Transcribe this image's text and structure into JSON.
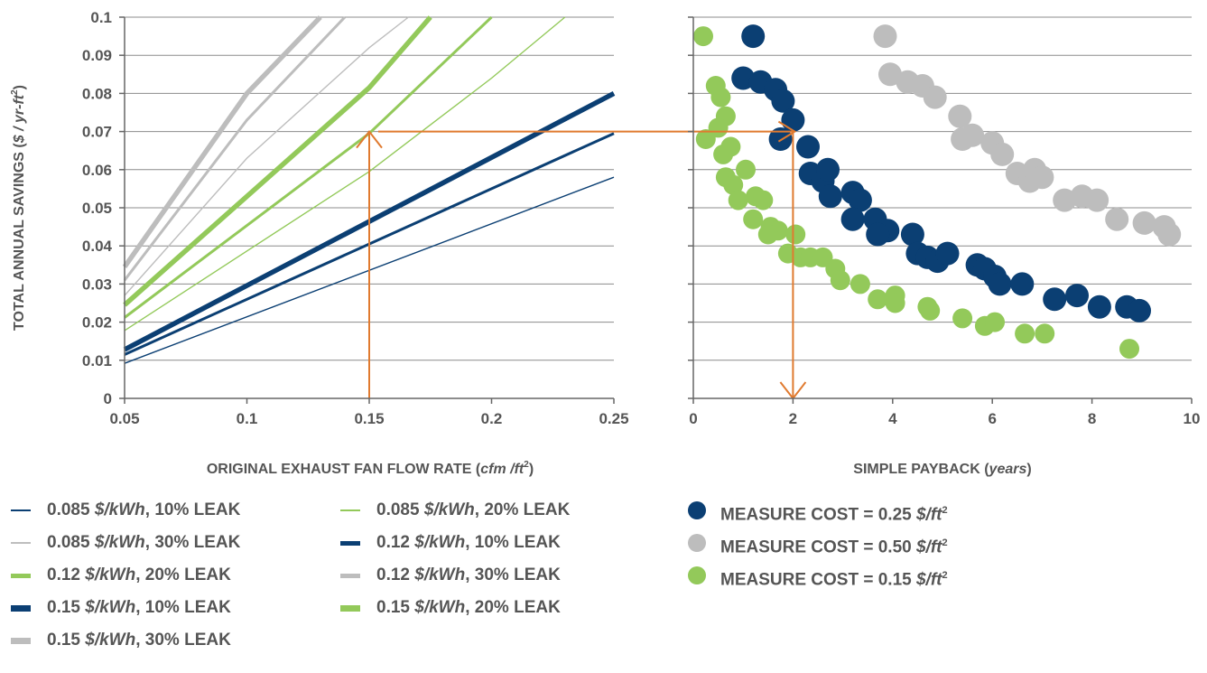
{
  "colors": {
    "navy": "#0b3f73",
    "gray": "#bdbdbd",
    "green": "#93c95a",
    "arrow": "#e07a2f",
    "grid": "#8c8c8c",
    "axis": "#666666",
    "text": "#555555"
  },
  "chart_data": [
    {
      "type": "line",
      "xlabel": "ORIGINAL EXHAUST FAN FLOW RATE (cfm /ft²)",
      "xlabel_parts": {
        "pre": "ORIGINAL EXHAUST FAN FLOW RATE (",
        "unit": "cfm /ft",
        "sup": "2",
        "post": ")"
      },
      "ylabel": "TOTAL ANNUAL SAVINGS ($ / yr-ft²)",
      "ylabel_parts": {
        "pre": "TOTAL ANNUAL SAVINGS (",
        "unit": "$ / yr-ft",
        "sup": "2",
        "post": ")"
      },
      "xlim": [
        0.05,
        0.25
      ],
      "ylim": [
        0,
        0.1
      ],
      "x_ticks": [
        "0.05",
        "0.1",
        "0.15",
        "0.2",
        "0.25"
      ],
      "y_ticks": [
        "0",
        "0.01",
        "0.02",
        "0.03",
        "0.04",
        "0.05",
        "0.06",
        "0.07",
        "0.08",
        "0.09",
        "0.1"
      ],
      "grid": true,
      "series": [
        {
          "name": "0.085 $/kWh, 10% LEAK",
          "price": "0.085",
          "leak": "10% LEAK",
          "color": "navy",
          "weight": "thin",
          "x": [
            0.05,
            0.25
          ],
          "y": [
            0.0092,
            0.058
          ]
        },
        {
          "name": "0.085 $/kWh, 20% LEAK",
          "price": "0.085",
          "leak": "20% LEAK",
          "color": "green",
          "weight": "thin",
          "x": [
            0.05,
            0.15,
            0.2,
            0.23
          ],
          "y": [
            0.0178,
            0.0595,
            0.084,
            0.1
          ]
        },
        {
          "name": "0.085 $/kWh, 30% LEAK",
          "price": "0.085",
          "leak": "30% LEAK",
          "color": "gray",
          "weight": "thin",
          "x": [
            0.05,
            0.1,
            0.15,
            0.166
          ],
          "y": [
            0.027,
            0.063,
            0.092,
            0.1
          ]
        },
        {
          "name": "0.12 $/kWh, 10% LEAK",
          "price": "0.12",
          "leak": "10% LEAK",
          "color": "navy",
          "weight": "medium",
          "x": [
            0.05,
            0.25
          ],
          "y": [
            0.0115,
            0.0695
          ]
        },
        {
          "name": "0.12 $/kWh, 20% LEAK",
          "price": "0.12",
          "leak": "20% LEAK",
          "color": "green",
          "weight": "medium",
          "x": [
            0.05,
            0.15,
            0.2
          ],
          "y": [
            0.0212,
            0.0695,
            0.1
          ]
        },
        {
          "name": "0.12 $/kWh, 30% LEAK",
          "price": "0.12",
          "leak": "30% LEAK",
          "color": "gray",
          "weight": "medium",
          "x": [
            0.05,
            0.1,
            0.14
          ],
          "y": [
            0.031,
            0.073,
            0.1
          ]
        },
        {
          "name": "0.15 $/kWh, 10% LEAK",
          "price": "0.15",
          "leak": "10% LEAK",
          "color": "navy",
          "weight": "thick",
          "x": [
            0.05,
            0.25
          ],
          "y": [
            0.0128,
            0.08
          ]
        },
        {
          "name": "0.15 $/kWh, 20% LEAK",
          "price": "0.15",
          "leak": "20% LEAK",
          "color": "green",
          "weight": "thick",
          "x": [
            0.05,
            0.15,
            0.175
          ],
          "y": [
            0.0245,
            0.0815,
            0.1
          ]
        },
        {
          "name": "0.15 $/kWh, 30% LEAK",
          "price": "0.15",
          "leak": "30% LEAK",
          "color": "gray",
          "weight": "thick",
          "x": [
            0.05,
            0.1,
            0.13
          ],
          "y": [
            0.0345,
            0.08,
            0.1
          ]
        }
      ]
    },
    {
      "type": "scatter",
      "xlabel": "SIMPLE PAYBACK (years)",
      "xlabel_parts": {
        "pre": "SIMPLE PAYBACK (",
        "unit": "years",
        "post": ")"
      },
      "xlim": [
        0,
        10
      ],
      "ylim": [
        0,
        0.1
      ],
      "x_ticks": [
        "0",
        "2",
        "4",
        "6",
        "8",
        "10"
      ],
      "grid": true,
      "series": [
        {
          "name": "MEASURE COST = 0.25 $/ft²",
          "label": "MEASURE COST = 0.25 ",
          "unit": "$/ft",
          "sup": "2",
          "color": "navy",
          "size": "large",
          "points": [
            [
              1.2,
              0.095
            ],
            [
              1.0,
              0.084
            ],
            [
              1.35,
              0.083
            ],
            [
              1.65,
              0.081
            ],
            [
              1.8,
              0.078
            ],
            [
              2.0,
              0.073
            ],
            [
              1.75,
              0.068
            ],
            [
              2.3,
              0.066
            ],
            [
              2.35,
              0.059
            ],
            [
              2.6,
              0.057
            ],
            [
              2.7,
              0.06
            ],
            [
              2.75,
              0.053
            ],
            [
              3.2,
              0.054
            ],
            [
              3.35,
              0.052
            ],
            [
              3.2,
              0.047
            ],
            [
              3.65,
              0.047
            ],
            [
              3.9,
              0.044
            ],
            [
              3.7,
              0.043
            ],
            [
              4.4,
              0.043
            ],
            [
              4.5,
              0.038
            ],
            [
              4.7,
              0.037
            ],
            [
              4.9,
              0.036
            ],
            [
              5.1,
              0.038
            ],
            [
              5.7,
              0.035
            ],
            [
              5.85,
              0.034
            ],
            [
              6.05,
              0.032
            ],
            [
              6.15,
              0.03
            ],
            [
              6.6,
              0.03
            ],
            [
              7.25,
              0.026
            ],
            [
              7.7,
              0.027
            ],
            [
              8.15,
              0.024
            ],
            [
              8.7,
              0.024
            ],
            [
              8.95,
              0.023
            ]
          ]
        },
        {
          "name": "MEASURE COST = 0.50 $/ft²",
          "label": "MEASURE COST = 0.50 ",
          "unit": "$/ft",
          "sup": "2",
          "color": "gray",
          "size": "large",
          "points": [
            [
              3.85,
              0.095
            ],
            [
              3.95,
              0.085
            ],
            [
              4.3,
              0.083
            ],
            [
              4.6,
              0.082
            ],
            [
              4.85,
              0.079
            ],
            [
              5.35,
              0.074
            ],
            [
              5.4,
              0.068
            ],
            [
              5.6,
              0.069
            ],
            [
              6.0,
              0.067
            ],
            [
              6.2,
              0.064
            ],
            [
              6.5,
              0.059
            ],
            [
              6.75,
              0.057
            ],
            [
              6.85,
              0.06
            ],
            [
              7.0,
              0.058
            ],
            [
              7.45,
              0.052
            ],
            [
              7.8,
              0.053
            ],
            [
              8.1,
              0.052
            ],
            [
              8.5,
              0.047
            ],
            [
              9.05,
              0.046
            ],
            [
              9.45,
              0.045
            ],
            [
              9.55,
              0.043
            ]
          ]
        },
        {
          "name": "MEASURE COST = 0.15 $/ft²",
          "label": "MEASURE COST = 0.15 ",
          "unit": "$/ft",
          "sup": "2",
          "color": "green",
          "size": "small",
          "points": [
            [
              0.2,
              0.095
            ],
            [
              0.45,
              0.082
            ],
            [
              0.55,
              0.079
            ],
            [
              0.65,
              0.074
            ],
            [
              0.5,
              0.071
            ],
            [
              0.25,
              0.068
            ],
            [
              0.75,
              0.066
            ],
            [
              0.6,
              0.064
            ],
            [
              1.05,
              0.06
            ],
            [
              0.65,
              0.058
            ],
            [
              0.8,
              0.056
            ],
            [
              0.9,
              0.052
            ],
            [
              1.25,
              0.053
            ],
            [
              1.4,
              0.052
            ],
            [
              1.2,
              0.047
            ],
            [
              1.55,
              0.045
            ],
            [
              1.7,
              0.044
            ],
            [
              1.5,
              0.043
            ],
            [
              2.05,
              0.043
            ],
            [
              1.9,
              0.038
            ],
            [
              2.15,
              0.037
            ],
            [
              2.35,
              0.037
            ],
            [
              2.6,
              0.037
            ],
            [
              2.85,
              0.034
            ],
            [
              2.95,
              0.031
            ],
            [
              3.35,
              0.03
            ],
            [
              3.7,
              0.026
            ],
            [
              4.05,
              0.027
            ],
            [
              4.05,
              0.025
            ],
            [
              4.7,
              0.024
            ],
            [
              4.75,
              0.023
            ],
            [
              5.4,
              0.021
            ],
            [
              5.85,
              0.019
            ],
            [
              6.05,
              0.02
            ],
            [
              6.65,
              0.017
            ],
            [
              7.05,
              0.017
            ],
            [
              8.75,
              0.013
            ]
          ]
        }
      ]
    }
  ],
  "arrows": {
    "flow": 0.15,
    "savings": 0.07,
    "payback": 2
  }
}
